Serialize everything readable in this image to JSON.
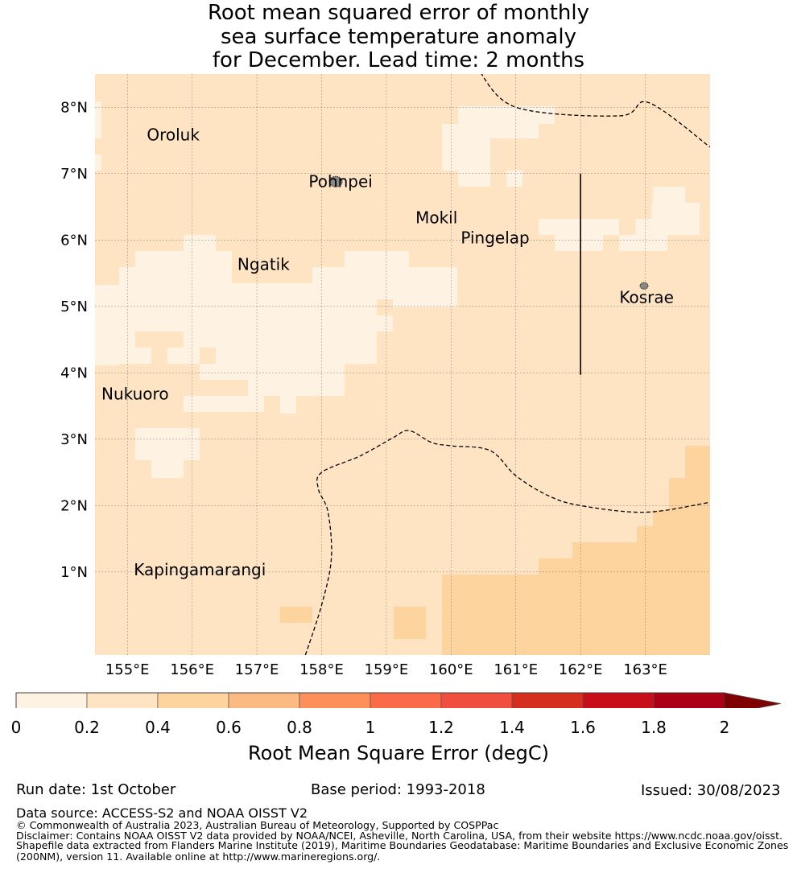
{
  "title": {
    "line1": "Root mean squared error of monthly",
    "line2": "sea surface temperature anomaly",
    "line3": "for December. Lead time: 2 months"
  },
  "map": {
    "lon_range": [
      154.5,
      164.0
    ],
    "lat_range": [
      -0.25,
      8.5
    ],
    "x_ticks": [
      {
        "value": 155,
        "label": "155°E"
      },
      {
        "value": 156,
        "label": "156°E"
      },
      {
        "value": 157,
        "label": "157°E"
      },
      {
        "value": 158,
        "label": "158°E"
      },
      {
        "value": 159,
        "label": "159°E"
      },
      {
        "value": 160,
        "label": "160°E"
      },
      {
        "value": 161,
        "label": "161°E"
      },
      {
        "value": 162,
        "label": "162°E"
      },
      {
        "value": 163,
        "label": "163°E"
      }
    ],
    "y_ticks": [
      {
        "value": 8,
        "label": "8°N"
      },
      {
        "value": 7,
        "label": "7°N"
      },
      {
        "value": 6,
        "label": "6°N"
      },
      {
        "value": 5,
        "label": "5°N"
      },
      {
        "value": 4,
        "label": "4°N"
      },
      {
        "value": 3,
        "label": "3°N"
      },
      {
        "value": 2,
        "label": "2°N"
      },
      {
        "value": 1,
        "label": "1°N"
      }
    ],
    "places": [
      {
        "name": "Oroluk",
        "lon": 155.3,
        "lat": 7.5
      },
      {
        "name": "Pohnpei",
        "lon": 157.8,
        "lat": 6.8
      },
      {
        "name": "Mokil",
        "lon": 159.45,
        "lat": 6.25
      },
      {
        "name": "Pingelap",
        "lon": 160.15,
        "lat": 5.95
      },
      {
        "name": "Ngatik",
        "lon": 156.7,
        "lat": 5.55
      },
      {
        "name": "Kosrae",
        "lon": 162.6,
        "lat": 5.05
      },
      {
        "name": "Nukuoro",
        "lon": 154.6,
        "lat": 3.6
      },
      {
        "name": "Kapingamarangi",
        "lon": 155.1,
        "lat": 0.95
      }
    ],
    "boundary_lines": [
      [
        [
          160.4,
          8.6
        ],
        [
          161.0,
          8.0
        ],
        [
          162.6,
          7.87
        ],
        [
          163.05,
          8.07
        ],
        [
          164.0,
          7.4
        ]
      ],
      [
        [
          157.75,
          -0.25
        ],
        [
          158.0,
          0.5
        ],
        [
          158.15,
          1.2
        ],
        [
          158.1,
          1.9
        ],
        [
          157.95,
          2.25
        ],
        [
          158.0,
          2.5
        ],
        [
          158.6,
          2.75
        ],
        [
          159.1,
          3.02
        ],
        [
          159.35,
          3.13
        ],
        [
          159.7,
          2.95
        ],
        [
          160.0,
          2.9
        ],
        [
          160.6,
          2.83
        ],
        [
          161.0,
          2.45
        ],
        [
          161.5,
          2.15
        ],
        [
          162.0,
          2.0
        ],
        [
          163.0,
          1.9
        ],
        [
          164.0,
          2.05
        ]
      ]
    ],
    "solid_line": [
      [
        162.0,
        7.0
      ],
      [
        162.0,
        3.97
      ]
    ],
    "islands": [
      {
        "name": "Pohnpei",
        "lon": 158.22,
        "lat": 6.88
      },
      {
        "name": "Kosrae",
        "lon": 162.98,
        "lat": 5.31
      }
    ]
  },
  "colorbar": {
    "colors": [
      "#fef2e2",
      "#fee4c3",
      "#fdd49d",
      "#fcba83",
      "#fc8f5a",
      "#fb6b4a",
      "#f04e3e",
      "#d5301f",
      "#c80e19",
      "#ab0015"
    ],
    "extend_color": "#7f0000",
    "labels": [
      "0",
      "0.2",
      "0.4",
      "0.6",
      "0.8",
      "1",
      "1.2",
      "1.4",
      "1.6",
      "1.8",
      "2"
    ],
    "title": "Root Mean Square Error (degC)"
  },
  "footer": {
    "run_date": "Run date: 1st October",
    "base_period": "Base period: 1993-2018",
    "issued": "Issued: 30/08/2023",
    "data_source": "Data source: ACCESS-S2 and NOAA OISST V2",
    "copyright": "© Commonwealth of Australia 2023, Australian Bureau of Meteorology, Supported by COSPPac",
    "disclaimer1": "Disclaimer: Contains NOAA OISST V2 data provided by NOAA/NCEI, Asheville, North Carolina, USA, from their website https://www.ncdc.noaa.gov/oisst.",
    "disclaimer2": "Shapefile data extracted from Flanders Marine Institute (2019), Maritime Boundaries Geodatabase: Maritime Boundaries and Exclusive Economic Zones",
    "disclaimer3": "(200NM), version 11. Available online at http://www.marineregions.org/."
  }
}
